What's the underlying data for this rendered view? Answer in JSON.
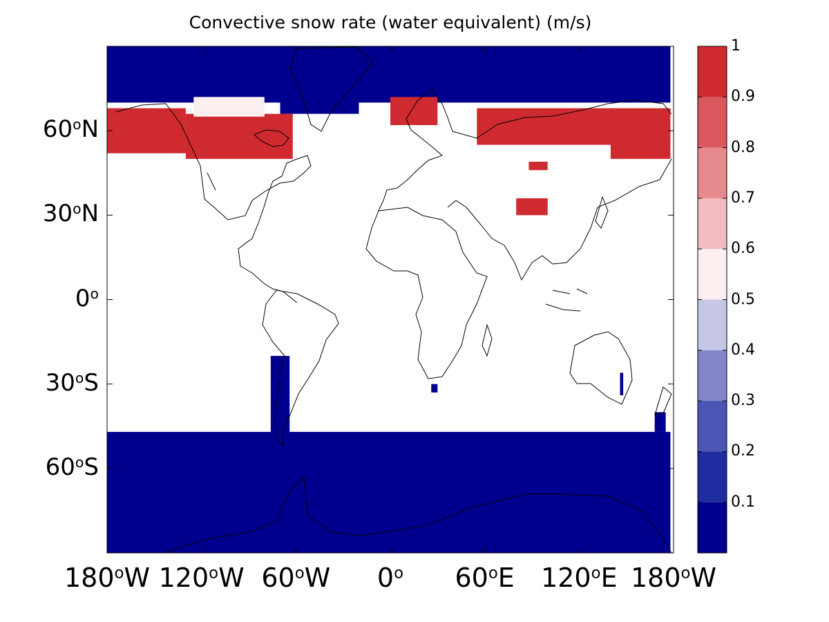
{
  "figure": {
    "title": "Convective snow rate (water equivalent) (m/s)"
  },
  "colors": {
    "background": "#ffffff",
    "axes_frame": "#000000",
    "coastline": "#000000",
    "no_data": "#ffffff"
  },
  "chart_data": {
    "type": "heatmap",
    "subtype": "global map (equirectangular)",
    "title": "Convective snow rate (water equivalent) (m/s)",
    "x_axis": {
      "range": [
        -180,
        180
      ],
      "ticks": [
        {
          "value": -180,
          "num": "180",
          "hemi": "W"
        },
        {
          "value": -120,
          "num": "120",
          "hemi": "W"
        },
        {
          "value": -60,
          "num": "60",
          "hemi": "W"
        },
        {
          "value": 0,
          "num": "0",
          "hemi": ""
        },
        {
          "value": 60,
          "num": "60",
          "hemi": "E"
        },
        {
          "value": 120,
          "num": "120",
          "hemi": "E"
        },
        {
          "value": 180,
          "num": "180",
          "hemi": "W"
        }
      ]
    },
    "y_axis": {
      "range": [
        -90,
        90
      ],
      "ticks": [
        {
          "value": 60,
          "num": "60",
          "hemi": "N"
        },
        {
          "value": 30,
          "num": "30",
          "hemi": "N"
        },
        {
          "value": 0,
          "num": "0",
          "hemi": ""
        },
        {
          "value": -30,
          "num": "30",
          "hemi": "S"
        },
        {
          "value": -60,
          "num": "60",
          "hemi": "S"
        }
      ]
    },
    "degree_symbol": "o",
    "colorbar": {
      "range": [
        0,
        1
      ],
      "tick_labels": [
        "0.1",
        "0.2",
        "0.3",
        "0.4",
        "0.5",
        "0.6",
        "0.7",
        "0.8",
        "0.9",
        "1"
      ],
      "levels": [
        {
          "min": 0.0,
          "max": 0.1,
          "color": "#00008f"
        },
        {
          "min": 0.1,
          "max": 0.2,
          "color": "#1e2ca0"
        },
        {
          "min": 0.2,
          "max": 0.3,
          "color": "#4b55b4"
        },
        {
          "min": 0.3,
          "max": 0.4,
          "color": "#8286c8"
        },
        {
          "min": 0.4,
          "max": 0.5,
          "color": "#c6c7e6"
        },
        {
          "min": 0.5,
          "max": 0.6,
          "color": "#fbeff0"
        },
        {
          "min": 0.6,
          "max": 0.7,
          "color": "#f1bcbf"
        },
        {
          "min": 0.7,
          "max": 0.8,
          "color": "#e68a8e"
        },
        {
          "min": 0.8,
          "max": 0.9,
          "color": "#da585d"
        },
        {
          "min": 0.9,
          "max": 1.0,
          "color": "#cf2a2f"
        }
      ]
    },
    "regions": [
      {
        "name": "arctic-ocean",
        "value": 0.05,
        "lon": [
          -180,
          178
        ],
        "lat": [
          70,
          90
        ]
      },
      {
        "name": "greenland",
        "value": 0.05,
        "lon": [
          -70,
          -20
        ],
        "lat": [
          66,
          90
        ]
      },
      {
        "name": "north-pacific-alaska-belt",
        "value": 0.95,
        "lon": [
          -180,
          -130
        ],
        "lat": [
          52,
          68
        ]
      },
      {
        "name": "canada-belt",
        "value": 0.92,
        "lon": [
          -130,
          -62
        ],
        "lat": [
          50,
          66
        ]
      },
      {
        "name": "canada-transition",
        "value": 0.5,
        "lon": [
          -125,
          -80
        ],
        "lat": [
          65,
          72
        ]
      },
      {
        "name": "scandinavia-belt",
        "value": 0.92,
        "lon": [
          0,
          30
        ],
        "lat": [
          62,
          72
        ]
      },
      {
        "name": "north-russia-belt",
        "value": 0.9,
        "lon": [
          55,
          178
        ],
        "lat": [
          55,
          68
        ]
      },
      {
        "name": "east-siberia-belt",
        "value": 0.95,
        "lon": [
          140,
          178
        ],
        "lat": [
          50,
          62
        ]
      },
      {
        "name": "tibet-patch",
        "value": 0.9,
        "lon": [
          80,
          100
        ],
        "lat": [
          30,
          36
        ]
      },
      {
        "name": "mongolia-patch",
        "value": 0.9,
        "lon": [
          88,
          100
        ],
        "lat": [
          46,
          49
        ]
      },
      {
        "name": "patagonia-andes",
        "value": 0.05,
        "lon": [
          -76,
          -64
        ],
        "lat": [
          -56,
          -20
        ]
      },
      {
        "name": "southern-africa-patch",
        "value": 0.05,
        "lon": [
          26,
          30
        ],
        "lat": [
          -33,
          -30
        ]
      },
      {
        "name": "east-australia-patch",
        "value": 0.05,
        "lon": [
          146,
          148
        ],
        "lat": [
          -34,
          -26
        ]
      },
      {
        "name": "new-zealand-patch",
        "value": 0.05,
        "lon": [
          168,
          175
        ],
        "lat": [
          -47,
          -40
        ]
      },
      {
        "name": "southern-ocean-antarctica",
        "value": 0.05,
        "lon": [
          -180,
          178
        ],
        "lat": [
          -90,
          -47
        ]
      }
    ]
  }
}
